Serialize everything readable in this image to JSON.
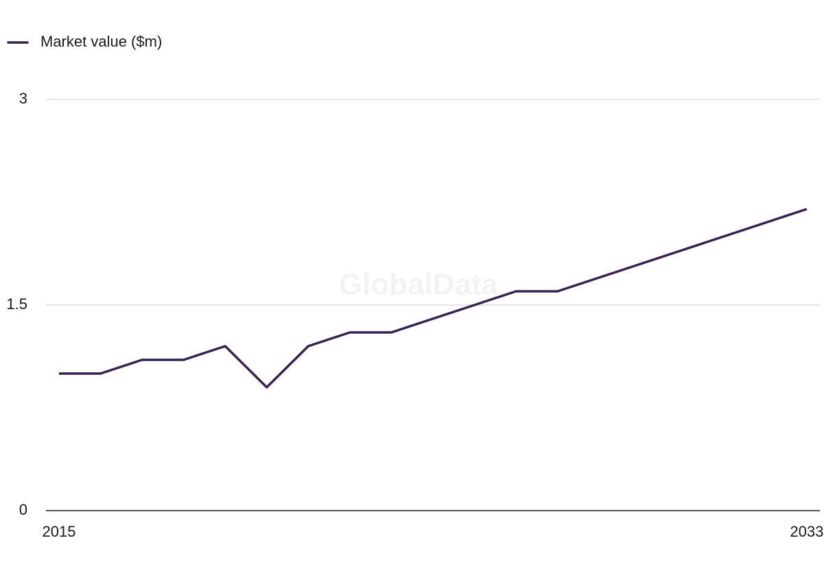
{
  "chart_data": {
    "type": "line",
    "watermark": "GlobalData",
    "x": [
      2015,
      2016,
      2017,
      2018,
      2019,
      2020,
      2021,
      2022,
      2023,
      2024,
      2025,
      2026,
      2027,
      2028,
      2029,
      2030,
      2031,
      2032,
      2033
    ],
    "series": [
      {
        "name": "Market value ($m)",
        "color": "#35204f",
        "values": [
          1.0,
          1.0,
          1.1,
          1.1,
          1.2,
          0.9,
          1.2,
          1.3,
          1.3,
          1.4,
          1.5,
          1.6,
          1.6,
          1.7,
          1.8,
          1.9,
          2.0,
          2.1,
          2.2
        ]
      }
    ],
    "xlim": [
      2015,
      2033
    ],
    "xticks": [
      2015,
      2033
    ],
    "ylim": [
      0,
      3
    ],
    "yticks": [
      0,
      1.5,
      3
    ],
    "grid": true,
    "legend": "top-left"
  }
}
